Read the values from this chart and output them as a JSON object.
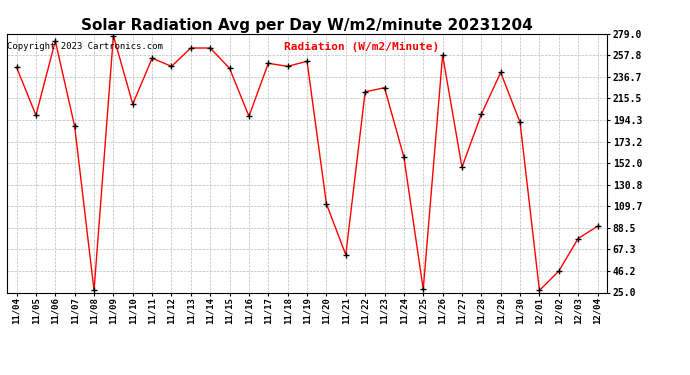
{
  "title": "Solar Radiation Avg per Day W/m2/minute 20231204",
  "copyright": "Copyright 2023 Cartronics.com",
  "legend_label": "Radiation (W/m2/Minute)",
  "dates": [
    "11/04",
    "11/05",
    "11/06",
    "11/07",
    "11/08",
    "11/09",
    "11/10",
    "11/11",
    "11/12",
    "11/13",
    "11/14",
    "11/15",
    "11/16",
    "11/17",
    "11/18",
    "11/19",
    "11/20",
    "11/21",
    "11/22",
    "11/23",
    "11/24",
    "11/25",
    "11/26",
    "11/27",
    "11/28",
    "11/29",
    "11/30",
    "12/01",
    "12/02",
    "12/03",
    "12/04"
  ],
  "values": [
    246.0,
    199.0,
    272.0,
    188.0,
    27.0,
    277.0,
    210.0,
    255.0,
    247.0,
    265.0,
    265.0,
    245.0,
    198.0,
    250.0,
    247.0,
    252.0,
    112.0,
    62.0,
    222.0,
    226.0,
    158.0,
    28.0,
    258.0,
    148.0,
    200.0,
    241.0,
    192.0,
    27.0,
    46.0,
    78.0,
    90.0
  ],
  "yticks": [
    25.0,
    46.2,
    67.3,
    88.5,
    109.7,
    130.8,
    152.0,
    173.2,
    194.3,
    215.5,
    236.7,
    257.8,
    279.0
  ],
  "ylim": [
    25.0,
    279.0
  ],
  "line_color": "red",
  "marker_color": "black",
  "background_color": "#ffffff",
  "grid_color": "#bbbbbb",
  "title_fontsize": 11,
  "tick_fontsize": 6.5,
  "copyright_fontsize": 6.5,
  "legend_fontsize": 8
}
